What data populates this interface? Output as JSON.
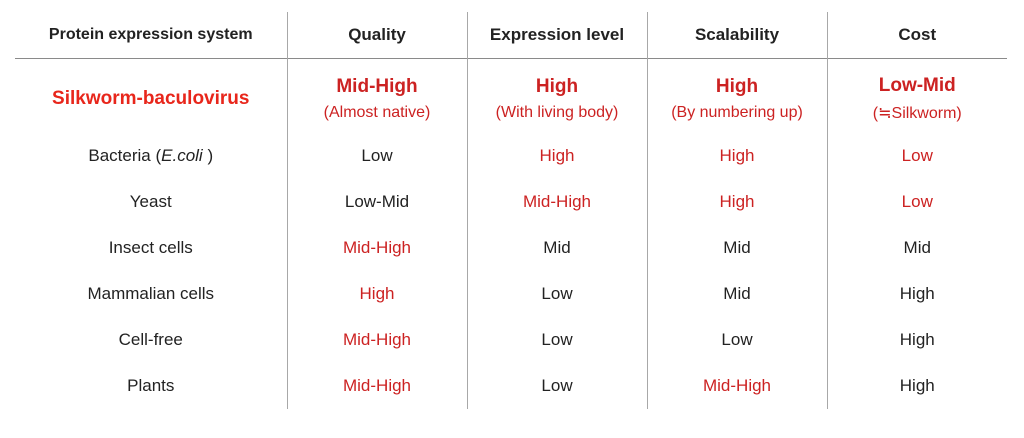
{
  "colors": {
    "highlight": "#cc2222",
    "hero": "#e8261b",
    "text": "#222222",
    "divider": "#a8a8a8"
  },
  "headers": [
    "Protein expression system",
    "Quality",
    "Expression level",
    "Scalability",
    "Cost"
  ],
  "hero": {
    "name": "Silkworm-baculovirus",
    "cells": [
      {
        "main": "Mid-High",
        "sub": "(Almost native)"
      },
      {
        "main": "High",
        "sub": "(With living body)"
      },
      {
        "main": "High",
        "sub": "(By numbering up)"
      },
      {
        "main": "Low-Mid",
        "sub": "(≒Silkworm)"
      }
    ]
  },
  "rows": [
    {
      "system": "Bacteria (",
      "system_italic": "E.coli",
      "system_suffix": " )",
      "quality": "Low",
      "expression": "High",
      "scalability": "High",
      "cost": "Low"
    },
    {
      "system": "Yeast",
      "quality": "Low-Mid",
      "expression": "Mid-High",
      "scalability": "High",
      "cost": "Low"
    },
    {
      "system": "Insect cells",
      "quality": "Mid-High",
      "expression": "Mid",
      "scalability": "Mid",
      "cost": "Mid"
    },
    {
      "system": "Mammalian cells",
      "quality": "High",
      "expression": "Low",
      "scalability": "Mid",
      "cost": "High"
    },
    {
      "system": "Cell-free",
      "quality": "Mid-High",
      "expression": "Low",
      "scalability": "Low",
      "cost": "High"
    },
    {
      "system": "Plants",
      "quality": "Mid-High",
      "expression": "Low",
      "scalability": "Mid-High",
      "cost": "High"
    }
  ]
}
